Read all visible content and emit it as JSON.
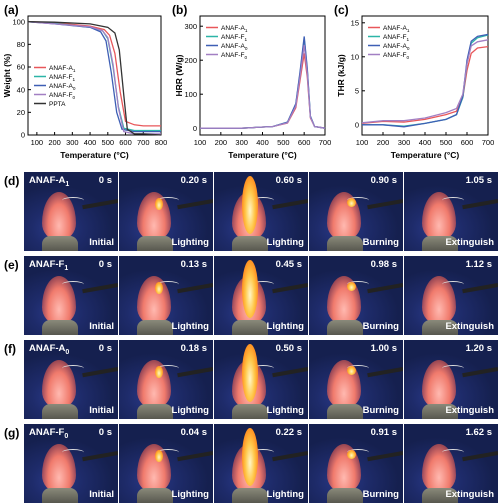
{
  "chart_data": [
    {
      "panel": "(a)",
      "type": "line",
      "xlabel": "Temperature (°C)",
      "ylabel": "Weight (%)",
      "xlim": [
        50,
        800
      ],
      "ylim": [
        0,
        105
      ],
      "xticks": [
        "100",
        "200",
        "300",
        "400",
        "500",
        "600",
        "700",
        "800"
      ],
      "yticks": [
        "0",
        "20",
        "40",
        "60",
        "80",
        "100"
      ],
      "legend": "left",
      "series": [
        {
          "name": "ANAF-A1",
          "color": "#e8575a",
          "x": [
            50,
            200,
            400,
            480,
            510,
            540,
            570,
            600,
            650,
            700,
            800
          ],
          "y": [
            100,
            99,
            96,
            93,
            88,
            72,
            38,
            12,
            9,
            8,
            8
          ]
        },
        {
          "name": "ANAF-F1",
          "color": "#2cb5a7",
          "x": [
            50,
            200,
            400,
            470,
            500,
            530,
            560,
            590,
            650,
            700,
            800
          ],
          "y": [
            100,
            98.5,
            95,
            92,
            85,
            60,
            25,
            6,
            4,
            4,
            4
          ]
        },
        {
          "name": "ANAF-A0",
          "color": "#3e5fb5",
          "x": [
            50,
            200,
            400,
            460,
            490,
            520,
            550,
            580,
            650,
            700,
            800
          ],
          "y": [
            100,
            98,
            95,
            91,
            83,
            55,
            20,
            5,
            3,
            3,
            3
          ]
        },
        {
          "name": "ANAF-F0",
          "color": "#a27fc3",
          "x": [
            50,
            200,
            400,
            470,
            500,
            530,
            560,
            590,
            650,
            700,
            800
          ],
          "y": [
            100,
            98,
            95.5,
            92,
            86,
            62,
            24,
            3,
            1,
            1,
            1
          ]
        },
        {
          "name": "PPTA",
          "color": "#333333",
          "x": [
            50,
            200,
            400,
            500,
            540,
            565,
            590,
            610,
            650,
            700,
            800
          ],
          "y": [
            100,
            99.5,
            98,
            95,
            90,
            75,
            35,
            5,
            1,
            1,
            0
          ]
        }
      ]
    },
    {
      "panel": "(b)",
      "type": "line",
      "xlabel": "Temperature (°C)",
      "ylabel": "HRR (W/g)",
      "xlim": [
        100,
        700
      ],
      "ylim": [
        -20,
        330
      ],
      "xticks": [
        "100",
        "200",
        "300",
        "400",
        "500",
        "600",
        "700"
      ],
      "yticks": [
        "0",
        "100",
        "200",
        "300"
      ],
      "legend": "top-left",
      "series": [
        {
          "name": "ANAF-A1",
          "color": "#e8575a",
          "x": [
            100,
            300,
            450,
            520,
            560,
            580,
            600,
            615,
            630,
            650,
            700
          ],
          "y": [
            0,
            0,
            5,
            15,
            60,
            140,
            220,
            150,
            30,
            5,
            0
          ]
        },
        {
          "name": "ANAF-F1",
          "color": "#2cb5a7",
          "x": [
            100,
            300,
            450,
            520,
            560,
            580,
            600,
            615,
            630,
            650,
            700
          ],
          "y": [
            0,
            0,
            5,
            18,
            70,
            160,
            262,
            170,
            35,
            5,
            0
          ]
        },
        {
          "name": "ANAF-A0",
          "color": "#3e5fb5",
          "x": [
            100,
            300,
            450,
            520,
            560,
            580,
            600,
            615,
            630,
            650,
            700
          ],
          "y": [
            0,
            0,
            5,
            18,
            72,
            165,
            270,
            175,
            35,
            5,
            0
          ]
        },
        {
          "name": "ANAF-F0",
          "color": "#a27fc3",
          "x": [
            100,
            300,
            450,
            520,
            560,
            580,
            600,
            615,
            630,
            650,
            700
          ],
          "y": [
            0,
            0,
            5,
            16,
            65,
            150,
            245,
            160,
            32,
            5,
            0
          ]
        }
      ]
    },
    {
      "panel": "(c)",
      "type": "line",
      "xlabel": "Temperature (°C)",
      "ylabel": "THR (kJ/g)",
      "xlim": [
        100,
        700
      ],
      "ylim": [
        -1.5,
        16
      ],
      "xticks": [
        "100",
        "200",
        "300",
        "400",
        "500",
        "600",
        "700"
      ],
      "yticks": [
        "0",
        "5",
        "10",
        "15"
      ],
      "legend": "top-left",
      "series": [
        {
          "name": "ANAF-A1",
          "color": "#e8575a",
          "x": [
            100,
            200,
            300,
            400,
            500,
            550,
            580,
            600,
            620,
            650,
            700
          ],
          "y": [
            0.2,
            0.5,
            0.4,
            0.8,
            1.5,
            2.0,
            4.0,
            8.0,
            10.5,
            11.3,
            11.5
          ]
        },
        {
          "name": "ANAF-F1",
          "color": "#2cb5a7",
          "x": [
            100,
            200,
            300,
            400,
            500,
            550,
            580,
            600,
            620,
            650,
            700
          ],
          "y": [
            0,
            0,
            -0.2,
            0.2,
            0.8,
            1.5,
            4.0,
            9.0,
            12.0,
            12.8,
            13.2
          ]
        },
        {
          "name": "ANAF-A0",
          "color": "#3e5fb5",
          "x": [
            100,
            200,
            300,
            400,
            500,
            550,
            580,
            600,
            620,
            650,
            700
          ],
          "y": [
            0,
            0,
            -0.3,
            0.2,
            0.8,
            1.5,
            4.2,
            9.5,
            12.3,
            13.0,
            13.3
          ]
        },
        {
          "name": "ANAF-F0",
          "color": "#a27fc3",
          "x": [
            100,
            200,
            300,
            400,
            500,
            550,
            580,
            600,
            620,
            650,
            700
          ],
          "y": [
            0.3,
            0.6,
            0.6,
            1.0,
            1.8,
            2.4,
            4.5,
            9.0,
            11.6,
            12.2,
            12.5
          ]
        }
      ]
    }
  ],
  "photo_rows": [
    {
      "label": "(d)",
      "sample": "ANAF-A1",
      "frames": [
        {
          "time": "0 s",
          "state": "Initial"
        },
        {
          "time": "0.20 s",
          "state": "Lighting"
        },
        {
          "time": "0.60 s",
          "state": "Lighting"
        },
        {
          "time": "0.90 s",
          "state": "Burning"
        },
        {
          "time": "1.05 s",
          "state": "Extinguish"
        }
      ]
    },
    {
      "label": "(e)",
      "sample": "ANAF-F1",
      "frames": [
        {
          "time": "0 s",
          "state": "Initial"
        },
        {
          "time": "0.13 s",
          "state": "Lighting"
        },
        {
          "time": "0.45 s",
          "state": "Lighting"
        },
        {
          "time": "0.98 s",
          "state": "Burning"
        },
        {
          "time": "1.12 s",
          "state": "Extinguish"
        }
      ]
    },
    {
      "label": "(f)",
      "sample": "ANAF-A0",
      "frames": [
        {
          "time": "0 s",
          "state": "Initial"
        },
        {
          "time": "0.18 s",
          "state": "Lighting"
        },
        {
          "time": "0.50 s",
          "state": "Lighting"
        },
        {
          "time": "1.00 s",
          "state": "Burning"
        },
        {
          "time": "1.20 s",
          "state": "Extinguish"
        }
      ]
    },
    {
      "label": "(g)",
      "sample": "ANAF-F0",
      "frames": [
        {
          "time": "0 s",
          "state": "Initial"
        },
        {
          "time": "0.04 s",
          "state": "Lighting"
        },
        {
          "time": "0.22 s",
          "state": "Lighting"
        },
        {
          "time": "0.91 s",
          "state": "Burning"
        },
        {
          "time": "1.62 s",
          "state": "Extinguish"
        }
      ]
    }
  ]
}
